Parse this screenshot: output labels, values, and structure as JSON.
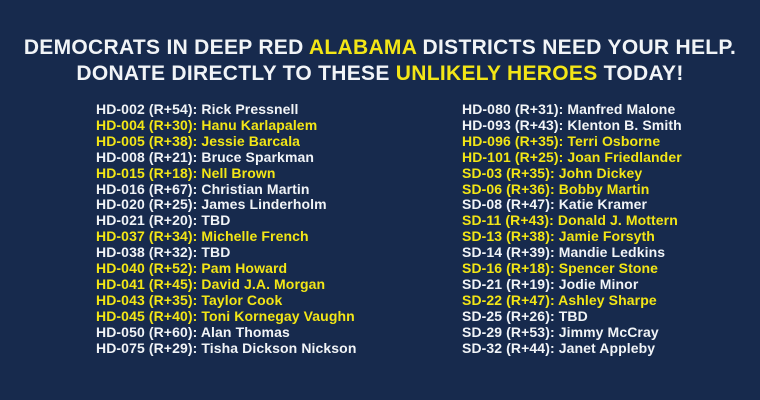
{
  "colors": {
    "background": "#172a4d",
    "text": "#f1f4f7",
    "highlight": "#f3e616"
  },
  "header": {
    "lines": [
      {
        "segments": [
          {
            "text": "DEMOCRATS IN DEEP RED ",
            "highlight": false
          },
          {
            "text": "ALABAMA",
            "highlight": true
          },
          {
            "text": " DISTRICTS NEED YOUR HELP.",
            "highlight": false
          }
        ]
      },
      {
        "segments": [
          {
            "text": "DONATE DIRECTLY TO THESE ",
            "highlight": false
          },
          {
            "text": "UNLIKELY HEROES",
            "highlight": true
          },
          {
            "text": " TODAY!",
            "highlight": false
          }
        ]
      }
    ]
  },
  "candidates": {
    "left_column": [
      {
        "district": "HD-002",
        "pvi": "R+54",
        "name": "Rick Pressnell",
        "highlight": false
      },
      {
        "district": "HD-004",
        "pvi": "R+30",
        "name": "Hanu Karlapalem",
        "highlight": true
      },
      {
        "district": "HD-005",
        "pvi": "R+38",
        "name": "Jessie Barcala",
        "highlight": true
      },
      {
        "district": "HD-008",
        "pvi": "R+21",
        "name": "Bruce Sparkman",
        "highlight": false
      },
      {
        "district": "HD-015",
        "pvi": "R+18",
        "name": "Nell Brown",
        "highlight": true
      },
      {
        "district": "HD-016",
        "pvi": "R+67",
        "name": "Christian Martin",
        "highlight": false
      },
      {
        "district": "HD-020",
        "pvi": "R+25",
        "name": "James Linderholm",
        "highlight": false
      },
      {
        "district": "HD-021",
        "pvi": "R+20",
        "name": "TBD",
        "highlight": false
      },
      {
        "district": "HD-037",
        "pvi": "R+34",
        "name": "Michelle French",
        "highlight": true
      },
      {
        "district": "HD-038",
        "pvi": "R+32",
        "name": "TBD",
        "highlight": false
      },
      {
        "district": "HD-040",
        "pvi": "R+52",
        "name": "Pam Howard",
        "highlight": true
      },
      {
        "district": "HD-041",
        "pvi": "R+45",
        "name": "David J.A. Morgan",
        "highlight": true
      },
      {
        "district": "HD-043",
        "pvi": "R+35",
        "name": "Taylor Cook",
        "highlight": true
      },
      {
        "district": "HD-045",
        "pvi": "R+40",
        "name": "Toni Kornegay Vaughn",
        "highlight": true
      },
      {
        "district": "HD-050",
        "pvi": "R+60",
        "name": "Alan Thomas",
        "highlight": false
      },
      {
        "district": "HD-075",
        "pvi": "R+29",
        "name": "Tisha Dickson Nickson",
        "highlight": false
      }
    ],
    "right_column": [
      {
        "district": "HD-080",
        "pvi": "R+31",
        "name": "Manfred Malone",
        "highlight": false
      },
      {
        "district": "HD-093",
        "pvi": "R+43",
        "name": "Klenton B. Smith",
        "highlight": false
      },
      {
        "district": "HD-096",
        "pvi": "R+35",
        "name": "Terri Osborne",
        "highlight": true
      },
      {
        "district": "HD-101",
        "pvi": "R+25",
        "name": "Joan Friedlander",
        "highlight": true
      },
      {
        "district": "SD-03",
        "pvi": "R+35",
        "name": "John Dickey",
        "highlight": true
      },
      {
        "district": "SD-06",
        "pvi": "R+36",
        "name": "Bobby Martin",
        "highlight": true
      },
      {
        "district": "SD-08",
        "pvi": "R+47",
        "name": "Katie Kramer",
        "highlight": false
      },
      {
        "district": "SD-11",
        "pvi": "R+43",
        "name": "Donald J. Mottern",
        "highlight": true
      },
      {
        "district": "SD-13",
        "pvi": "R+38",
        "name": "Jamie Forsyth",
        "highlight": true
      },
      {
        "district": "SD-14",
        "pvi": "R+39",
        "name": "Mandie Ledkins",
        "highlight": false
      },
      {
        "district": "SD-16",
        "pvi": "R+18",
        "name": "Spencer Stone",
        "highlight": true
      },
      {
        "district": "SD-21",
        "pvi": "R+19",
        "name": "Jodie Minor",
        "highlight": false
      },
      {
        "district": "SD-22",
        "pvi": "R+47",
        "name": "Ashley Sharpe",
        "highlight": true
      },
      {
        "district": "SD-25",
        "pvi": "R+26",
        "name": "TBD",
        "highlight": false
      },
      {
        "district": "SD-29",
        "pvi": "R+53",
        "name": "Jimmy McCray",
        "highlight": false
      },
      {
        "district": "SD-32",
        "pvi": "R+44",
        "name": "Janet Appleby",
        "highlight": false
      }
    ]
  }
}
